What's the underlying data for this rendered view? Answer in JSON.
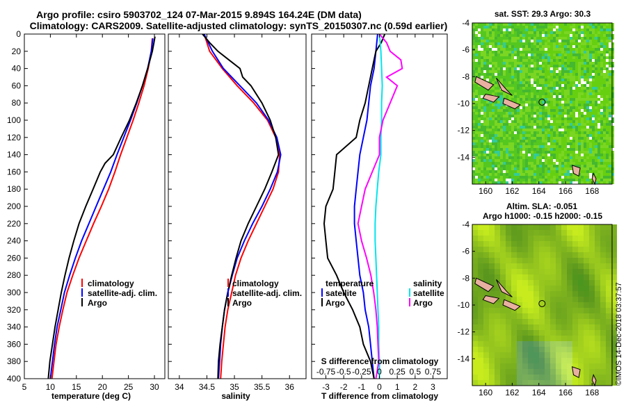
{
  "title_line1": "Argo profile: csiro 5903702_124 07-Mar-2015 9.894S 164.24E (DM data)",
  "title_line2": "Climatology: CARS2009. Satellite-adjusted climatology: synTS_20150307.nc (0.59d earlier)",
  "credit": "©IMOS 14-Dec-2018 03:37:57",
  "colors": {
    "clim": "#ff0000",
    "sat": "#0000ff",
    "argo": "#000000",
    "sdiff": "#ff00ff",
    "sdiff_sat": "#00e5ee",
    "island": "#e8b0a0"
  },
  "chart_data": [
    {
      "type": "line",
      "name": "temperature-profile",
      "xlabel": "temperature (deg C)",
      "ylabel": "",
      "xlim": [
        5,
        32
      ],
      "ylim": [
        400,
        0
      ],
      "xticks": [
        5,
        10,
        15,
        20,
        25,
        30
      ],
      "yticks": [
        0,
        20,
        40,
        60,
        80,
        100,
        120,
        140,
        160,
        180,
        200,
        220,
        240,
        260,
        280,
        300,
        320,
        340,
        360,
        380,
        400
      ],
      "legend": [
        "climatology",
        "satellite-adj. clim.",
        "Argo"
      ],
      "series": [
        {
          "name": "climatology",
          "color": "#ff0000",
          "depth": [
            5,
            20,
            40,
            60,
            80,
            100,
            120,
            140,
            160,
            180,
            200,
            220,
            240,
            260,
            280,
            300,
            320,
            340,
            360,
            380,
            400
          ],
          "values": [
            29.6,
            29.4,
            28.8,
            28.0,
            27.0,
            25.9,
            24.7,
            23.5,
            22.4,
            21.2,
            19.8,
            18.3,
            16.9,
            15.5,
            14.3,
            13.2,
            12.4,
            11.7,
            11.1,
            10.7,
            10.3
          ]
        },
        {
          "name": "satellite-adj. clim.",
          "color": "#0000ff",
          "depth": [
            5,
            20,
            40,
            60,
            80,
            100,
            120,
            140,
            160,
            180,
            200,
            220,
            240,
            260,
            280,
            300,
            320,
            340,
            360,
            380,
            400
          ],
          "values": [
            29.7,
            29.4,
            28.7,
            27.7,
            26.6,
            25.4,
            24.1,
            22.8,
            21.6,
            20.2,
            18.8,
            17.4,
            16.0,
            14.8,
            13.7,
            12.7,
            12.0,
            11.3,
            10.8,
            10.4,
            10.0
          ]
        },
        {
          "name": "Argo",
          "color": "#000000",
          "depth": [
            3,
            10,
            20,
            40,
            60,
            80,
            100,
            120,
            140,
            150,
            160,
            180,
            200,
            220,
            240,
            260,
            280,
            300,
            320,
            340,
            360,
            380,
            400
          ],
          "values": [
            30.1,
            29.9,
            29.6,
            28.7,
            27.7,
            26.5,
            25.2,
            23.6,
            22.1,
            20.5,
            19.6,
            18.2,
            16.8,
            15.5,
            14.5,
            13.6,
            12.8,
            12.1,
            11.5,
            10.9,
            10.4,
            9.9,
            9.6
          ]
        }
      ]
    },
    {
      "type": "line",
      "name": "salinity-profile",
      "xlabel": "salinity",
      "ylabel": "",
      "xlim": [
        33.8,
        36.3
      ],
      "ylim": [
        400,
        0
      ],
      "xticks": [
        34,
        34.5,
        35,
        35.5,
        36
      ],
      "xticklabels": [
        "34",
        "34.5",
        "35",
        "35.5",
        "36"
      ],
      "legend": [
        "climatology",
        "satellite-adj. clim.",
        "Argo"
      ],
      "series": [
        {
          "name": "climatology",
          "color": "#ff0000",
          "depth": [
            0,
            20,
            40,
            60,
            80,
            100,
            120,
            140,
            160,
            180,
            200,
            220,
            240,
            260,
            280,
            300,
            320,
            340,
            360,
            380,
            400
          ],
          "values": [
            34.45,
            34.55,
            34.78,
            35.05,
            35.35,
            35.6,
            35.75,
            35.82,
            35.8,
            35.7,
            35.55,
            35.4,
            35.25,
            35.12,
            35.02,
            34.95,
            34.88,
            34.83,
            34.8,
            34.77,
            34.75
          ]
        },
        {
          "name": "satellite-adj. clim.",
          "color": "#0000ff",
          "depth": [
            0,
            20,
            40,
            60,
            80,
            100,
            120,
            140,
            160,
            180,
            200,
            220,
            240,
            260,
            280,
            300,
            320,
            340,
            360,
            380,
            400
          ],
          "values": [
            34.45,
            34.6,
            34.8,
            35.1,
            35.4,
            35.62,
            35.77,
            35.84,
            35.78,
            35.65,
            35.5,
            35.33,
            35.18,
            35.05,
            34.96,
            34.88,
            34.82,
            34.78,
            34.75,
            34.73,
            34.71
          ]
        },
        {
          "name": "Argo",
          "color": "#000000",
          "depth": [
            0,
            10,
            20,
            30,
            40,
            50,
            60,
            80,
            100,
            120,
            140,
            160,
            180,
            200,
            220,
            240,
            260,
            280,
            300,
            320,
            340,
            360,
            380,
            400
          ],
          "values": [
            34.42,
            34.55,
            34.7,
            34.9,
            35.1,
            35.15,
            35.3,
            35.5,
            35.65,
            35.75,
            35.8,
            35.68,
            35.55,
            35.4,
            35.25,
            35.12,
            35.03,
            34.95,
            34.88,
            34.82,
            34.78,
            34.74,
            34.71,
            34.7
          ]
        }
      ]
    },
    {
      "type": "line",
      "name": "difference-profile",
      "xlabel": "T difference from climatology",
      "xlabel_top": "S difference from climatology",
      "xlim": [
        -3.8,
        3.8
      ],
      "ylim": [
        400,
        0
      ],
      "xticks": [
        -3,
        -2,
        -1,
        0,
        1,
        2,
        3
      ],
      "xticks_s": [
        -0.75,
        -0.5,
        -0.25,
        0,
        0.25,
        0.5,
        0.75
      ],
      "xticks_s_labels": [
        "-0.75",
        "-0.5",
        "-0.25",
        "0",
        "0.25",
        "0.5",
        "0.75"
      ],
      "legend": {
        "temperature": [
          "satellite",
          "Argo"
        ],
        "salinity": [
          "satellite",
          "Argo"
        ]
      },
      "legend_headers": [
        "temperature",
        "salinity"
      ],
      "series": [
        {
          "name": "T satellite",
          "color": "#0000ff",
          "depth": [
            0,
            20,
            40,
            60,
            80,
            100,
            120,
            140,
            160,
            180,
            200,
            220,
            240,
            260,
            280,
            300,
            320,
            340,
            360,
            380,
            400
          ],
          "values": [
            -0.1,
            -0.2,
            -0.3,
            -0.5,
            -0.6,
            -0.7,
            -0.9,
            -1.1,
            -1.2,
            -1.3,
            -1.4,
            -1.4,
            -1.3,
            -1.2,
            -1.1,
            -0.9,
            -0.8,
            -0.6,
            -0.5,
            -0.4,
            -0.3
          ]
        },
        {
          "name": "T Argo",
          "color": "#000000",
          "depth": [
            0,
            10,
            20,
            40,
            60,
            80,
            100,
            120,
            140,
            160,
            180,
            200,
            220,
            240,
            260,
            280,
            300,
            320,
            340,
            360,
            380,
            400
          ],
          "values": [
            0.3,
            0.1,
            -0.2,
            -0.4,
            -0.6,
            -0.8,
            -1.1,
            -1.3,
            -2.4,
            -2.5,
            -2.6,
            -3.0,
            -3.1,
            -3.0,
            -2.9,
            -2.4,
            -2.0,
            -1.5,
            -1.1,
            -0.9,
            -0.5,
            -0.3
          ]
        },
        {
          "name": "S satellite",
          "color": "#00e5ee",
          "depth": [
            0,
            20,
            40,
            60,
            80,
            100,
            120,
            140,
            160,
            180,
            200,
            220,
            240,
            260,
            280,
            300,
            320,
            340,
            360,
            380,
            400
          ],
          "values": [
            0.0,
            0.02,
            0.03,
            0.04,
            0.03,
            0.03,
            0.02,
            0.02,
            -0.01,
            -0.03,
            -0.05,
            -0.06,
            -0.06,
            -0.05,
            -0.04,
            -0.03,
            -0.02,
            -0.01,
            -0.01,
            0.0,
            0.0
          ]
        },
        {
          "name": "S Argo",
          "color": "#ff00ff",
          "depth": [
            0,
            10,
            20,
            30,
            40,
            50,
            60,
            80,
            100,
            120,
            140,
            160,
            180,
            200,
            220,
            240,
            260,
            280,
            300,
            320,
            340,
            360,
            380,
            400
          ],
          "values": [
            0.0,
            0.1,
            0.15,
            0.3,
            0.32,
            0.1,
            0.25,
            0.15,
            0.05,
            0.0,
            0.0,
            -0.1,
            -0.2,
            -0.25,
            -0.3,
            -0.25,
            -0.18,
            -0.12,
            -0.08,
            -0.05,
            -0.03,
            -0.02,
            -0.01,
            -0.05
          ]
        }
      ]
    },
    {
      "type": "heatmap",
      "name": "sst-map",
      "title": "sat. SST: 29.3 Argo: 30.3",
      "xlim": [
        159,
        169.5
      ],
      "ylim": [
        -16,
        -4
      ],
      "xticks": [
        160,
        162,
        164,
        166,
        168
      ],
      "yticks": [
        -4,
        -6,
        -8,
        -10,
        -12,
        -14
      ],
      "argo_position": {
        "lon": 164.24,
        "lat": -9.894
      }
    },
    {
      "type": "heatmap",
      "name": "sla-map",
      "title_line1": "Altim. SLA: -0.051",
      "title_line2": "Argo h1000: -0.15 h2000: -0.15",
      "xlim": [
        159,
        169.5
      ],
      "ylim": [
        -16,
        -4
      ],
      "xticks": [
        160,
        162,
        164,
        166,
        168
      ],
      "yticks": [
        -4,
        -6,
        -8,
        -10,
        -12,
        -14
      ],
      "argo_position": {
        "lon": 164.24,
        "lat": -9.894
      }
    }
  ]
}
